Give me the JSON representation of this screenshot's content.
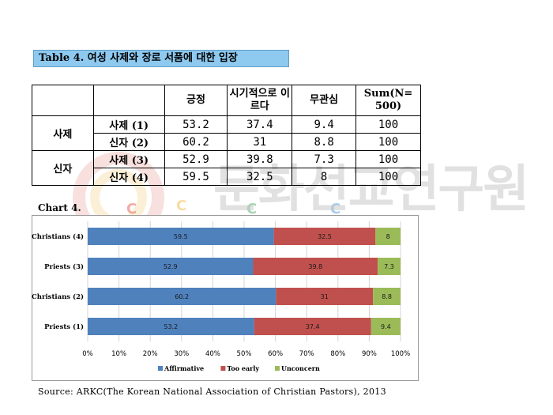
{
  "title": "Table 4. 여성 사제와 장로 서품에 대한 입장",
  "table": {
    "headers": [
      "긍정",
      "시기적으로 이르다",
      "무관심",
      "Sum(N= 500)"
    ],
    "groups": [
      {
        "label": "사제",
        "rows": [
          {
            "label": "사제 (1)",
            "values": [
              "53.2",
              "37.4",
              "9.4",
              "100"
            ]
          },
          {
            "label": "신자 (2)",
            "values": [
              "60.2",
              "31",
              "8.8",
              "100"
            ]
          }
        ]
      },
      {
        "label": "신자",
        "rows": [
          {
            "label": "사제 (3)",
            "values": [
              "52.9",
              "39.8",
              "7.3",
              "100"
            ]
          },
          {
            "label": "신자 (4)",
            "values": [
              "59.5",
              "32.5",
              "8",
              "100"
            ]
          }
        ]
      }
    ]
  },
  "chart_title": "Chart 4.",
  "chart_data": {
    "type": "bar",
    "orientation": "horizontal",
    "stacked": true,
    "categories": [
      "Christians (4)",
      "Priests (3)",
      "Christians (2)",
      "Priests (1)"
    ],
    "series": [
      {
        "name": "Affirmative",
        "values": [
          59.5,
          52.9,
          60.2,
          53.2
        ],
        "color": "#4f81bd"
      },
      {
        "name": "Too early",
        "values": [
          32.5,
          39.8,
          31,
          37.4
        ],
        "color": "#c0504d"
      },
      {
        "name": "Unconcern",
        "values": [
          8,
          7.3,
          8.8,
          9.4
        ],
        "color": "#9bbb59"
      }
    ],
    "xlim": [
      0,
      100
    ],
    "x_ticks": [
      "0%",
      "10%",
      "20%",
      "30%",
      "40%",
      "50%",
      "60%",
      "70%",
      "80%",
      "90%",
      "100%"
    ],
    "grid": true,
    "legend_position": "bottom",
    "data_labels": true
  },
  "watermark": {
    "text": "문화선교연구원",
    "letters": [
      "C",
      "C",
      "C",
      "C"
    ],
    "colors": [
      "#e04b3a",
      "#f2b233",
      "#3ea35a",
      "#3f8fd6"
    ]
  },
  "source": "Source: ARKC(The Korean National Association of Christian Pastors), 2013"
}
